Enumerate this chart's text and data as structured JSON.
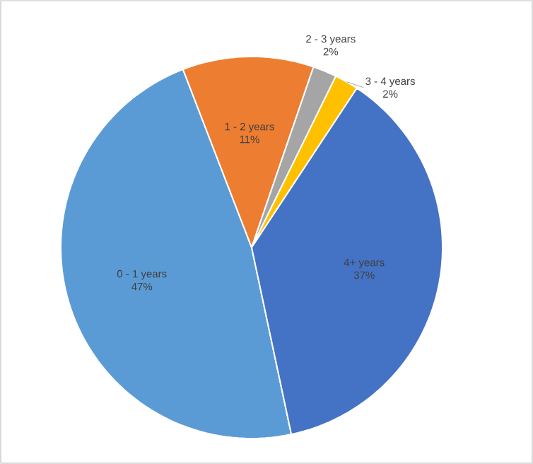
{
  "chart_data": {
    "type": "pie",
    "categories": [
      "0 - 1 years",
      "1 - 2 years",
      "2 - 3 years",
      "3 - 4 years",
      "4+ years"
    ],
    "values": [
      47,
      11,
      2,
      2,
      37
    ],
    "value_labels": [
      "47%",
      "11%",
      "2%",
      "2%",
      "37%"
    ],
    "colors": [
      "#5b9bd5",
      "#ed7d31",
      "#a5a5a5",
      "#ffc000",
      "#4472c4"
    ]
  }
}
